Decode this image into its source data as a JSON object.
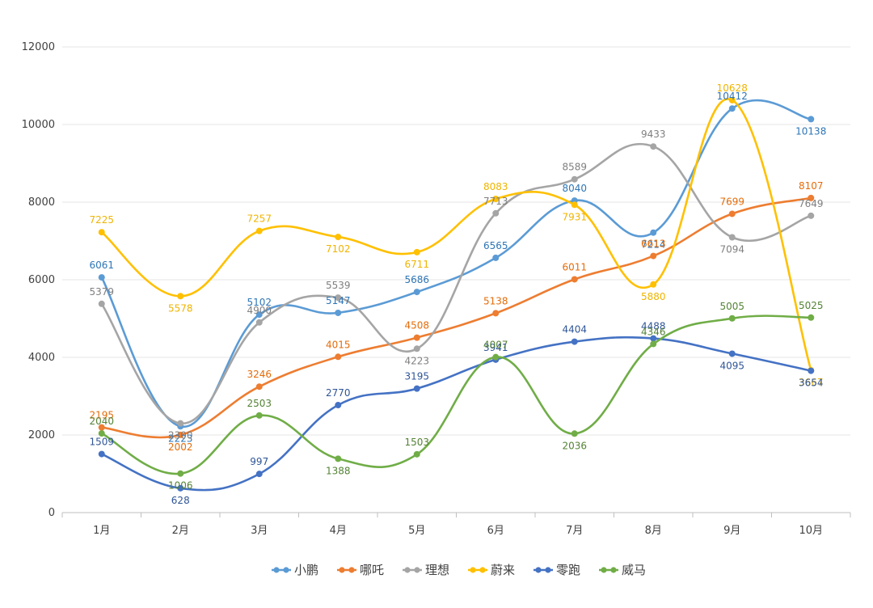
{
  "chart_data": {
    "type": "line",
    "title": "",
    "xlabel": "",
    "ylabel": "",
    "ylim": [
      0,
      12000
    ],
    "yticks": [
      0,
      2000,
      4000,
      6000,
      8000,
      10000,
      12000
    ],
    "categories": [
      "1月",
      "2月",
      "3月",
      "4月",
      "5月",
      "6月",
      "7月",
      "8月",
      "9月",
      "10月"
    ],
    "legend_position": "bottom",
    "grid": true,
    "series": [
      {
        "name": "小鹏",
        "color": "#5b9bd5",
        "label_color": "#2e75b6",
        "values": [
          6061,
          2223,
          5102,
          5147,
          5686,
          6565,
          8040,
          7214,
          10412,
          10138
        ]
      },
      {
        "name": "哪吒",
        "color": "#ed7d31",
        "label_color": "#e46c0a",
        "values": [
          2195,
          2002,
          3246,
          4015,
          4508,
          5138,
          6011,
          6613,
          7699,
          8107
        ]
      },
      {
        "name": "理想",
        "color": "#a5a5a5",
        "label_color": "#7f7f7f",
        "values": [
          5379,
          2300,
          4900,
          5539,
          4223,
          7713,
          8589,
          9433,
          7094,
          7649
        ]
      },
      {
        "name": "蔚来",
        "color": "#ffc000",
        "label_color": "#f0b400",
        "values": [
          7225,
          5578,
          7257,
          7102,
          6711,
          8083,
          7931,
          5880,
          10628,
          3667
        ]
      },
      {
        "name": "零跑",
        "color": "#4472c4",
        "label_color": "#2f5597",
        "values": [
          1509,
          628,
          997,
          2770,
          3195,
          3941,
          4404,
          4488,
          4095,
          3654
        ]
      },
      {
        "name": "威马",
        "color": "#70ad47",
        "label_color": "#548235",
        "values": [
          2040,
          1006,
          2503,
          1388,
          1503,
          4007,
          2036,
          4346,
          5005,
          5025
        ]
      }
    ]
  }
}
